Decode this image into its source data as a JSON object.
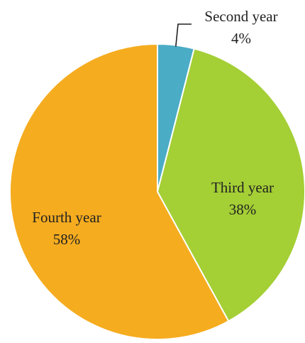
{
  "chart_data": {
    "type": "pie",
    "categories": [
      "Second year",
      "Third year",
      "Fourth year"
    ],
    "values": [
      4,
      38,
      58
    ],
    "labels": [
      "4%",
      "38%",
      "58%"
    ],
    "colors": [
      "#4bacc6",
      "#a4cf35",
      "#f5ac1f"
    ],
    "start_position": "top",
    "direction": "clockwise",
    "legend": "none",
    "data_label_position": "category name and percent on slice; callout for Second year"
  }
}
